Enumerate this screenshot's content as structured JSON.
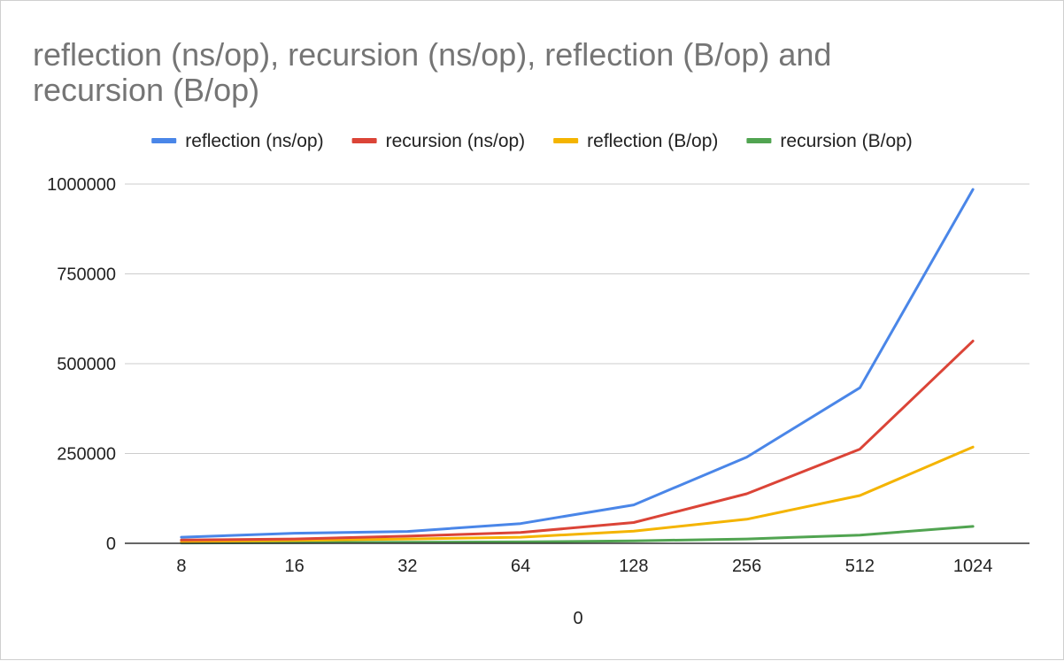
{
  "chart_data": {
    "type": "line",
    "title": "reflection (ns/op), recursion (ns/op), reflection (B/op) and recursion (B/op)",
    "xlabel": "0",
    "ylabel": "",
    "categories": [
      "8",
      "16",
      "32",
      "64",
      "128",
      "256",
      "512",
      "1024"
    ],
    "ylim": [
      0,
      1000000
    ],
    "yticks": [
      "0",
      "250000",
      "500000",
      "750000",
      "1000000"
    ],
    "grid": true,
    "legend": "top",
    "series": [
      {
        "name": "reflection (ns/op)",
        "color": "#4a86e8",
        "values": [
          17000,
          28000,
          33000,
          55000,
          107000,
          240000,
          433000,
          985000
        ]
      },
      {
        "name": "recursion (ns/op)",
        "color": "#db4437",
        "values": [
          9000,
          12000,
          20000,
          30000,
          58000,
          138000,
          262000,
          563000
        ]
      },
      {
        "name": "reflection (B/op)",
        "color": "#f4b400",
        "values": [
          5000,
          8000,
          12000,
          17000,
          34000,
          67000,
          133000,
          268000
        ]
      },
      {
        "name": "recursion (B/op)",
        "color": "#51a451",
        "values": [
          1000,
          2000,
          3000,
          4000,
          7000,
          12000,
          23000,
          47000
        ]
      }
    ]
  }
}
